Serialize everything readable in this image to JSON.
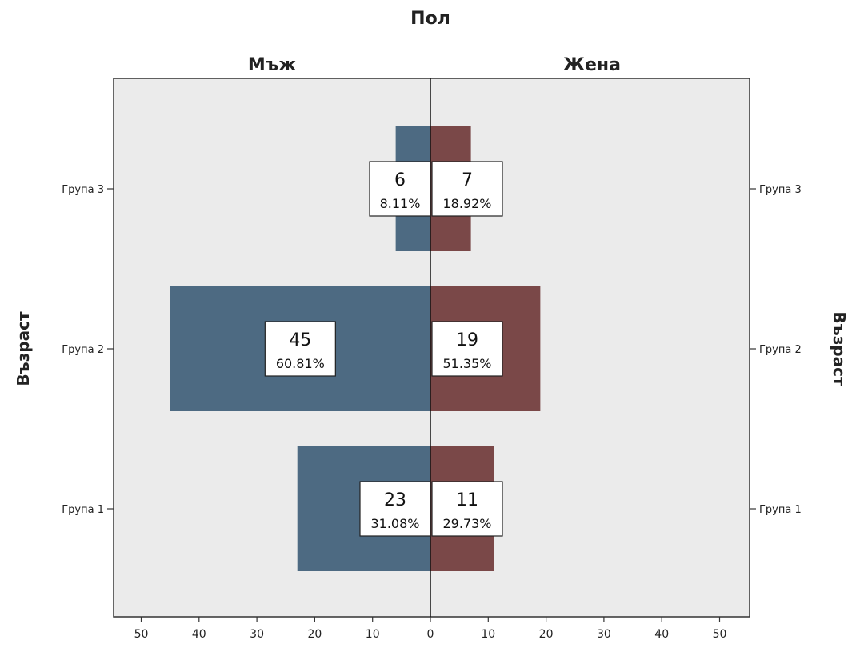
{
  "chart_data": {
    "type": "bar",
    "orientation": "horizontal",
    "layout": "population-pyramid",
    "title": "Пол",
    "ylabel": "Възраст",
    "categories": [
      "Група 1",
      "Група 2",
      "Група 3"
    ],
    "xlim": [
      0,
      50
    ],
    "xticks": [
      0,
      10,
      20,
      30,
      40,
      50
    ],
    "grid": false,
    "series": [
      {
        "name": "Мъж",
        "side": "left",
        "color": "#4d6a82",
        "values": [
          23,
          45,
          6
        ],
        "percent_labels": [
          "31.08%",
          "60.81%",
          "8.11%"
        ]
      },
      {
        "name": "Жена",
        "side": "right",
        "color": "#7a4848",
        "values": [
          11,
          19,
          7
        ],
        "percent_labels": [
          "29.73%",
          "51.35%",
          "18.92%"
        ]
      }
    ]
  },
  "colors": {
    "plot_background": "#ebebeb",
    "frame": "#333333",
    "label_box": "#ffffff"
  }
}
